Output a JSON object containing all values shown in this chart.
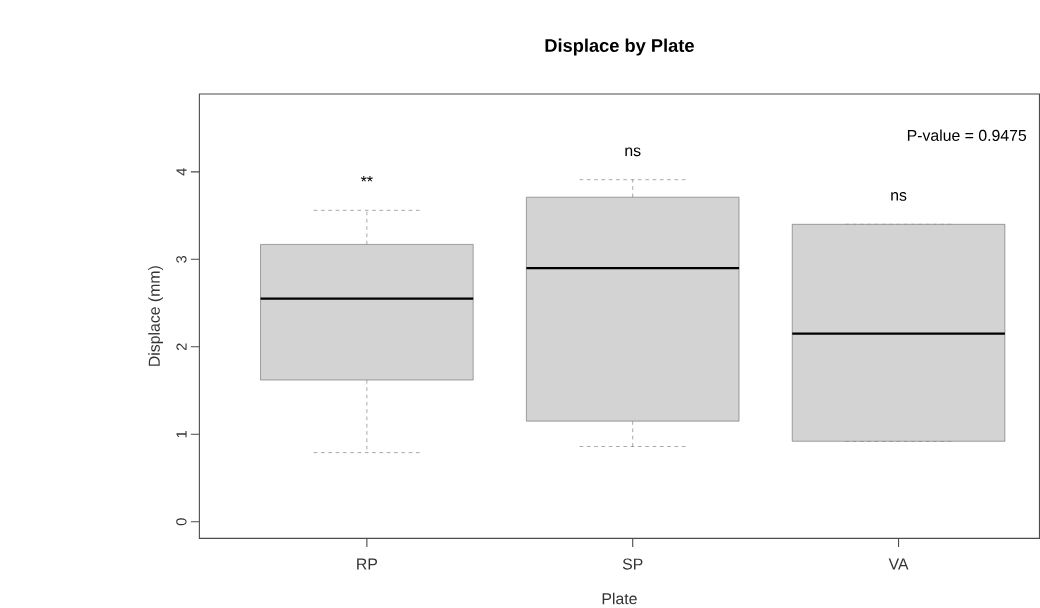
{
  "chart_data": {
    "type": "box",
    "title": "Displace by Plate",
    "xlabel": "Plate",
    "ylabel": "Displace (mm)",
    "categories": [
      "RP",
      "SP",
      "VA"
    ],
    "boxes": [
      {
        "low": 0.79,
        "q1": 1.62,
        "median": 2.55,
        "q3": 3.17,
        "high": 3.56
      },
      {
        "low": 0.86,
        "q1": 1.15,
        "median": 2.9,
        "q3": 3.71,
        "high": 3.91
      },
      {
        "low": 0.92,
        "q1": 0.92,
        "median": 2.15,
        "q3": 3.4,
        "high": 3.4
      }
    ],
    "color": "#d3d3d3",
    "ylim": [
      -0.19,
      4.89
    ],
    "yticks": [
      0,
      1,
      2,
      3,
      4
    ],
    "annotations": [
      "**",
      "ns",
      "ns",
      "P-value = 0.9475"
    ]
  }
}
